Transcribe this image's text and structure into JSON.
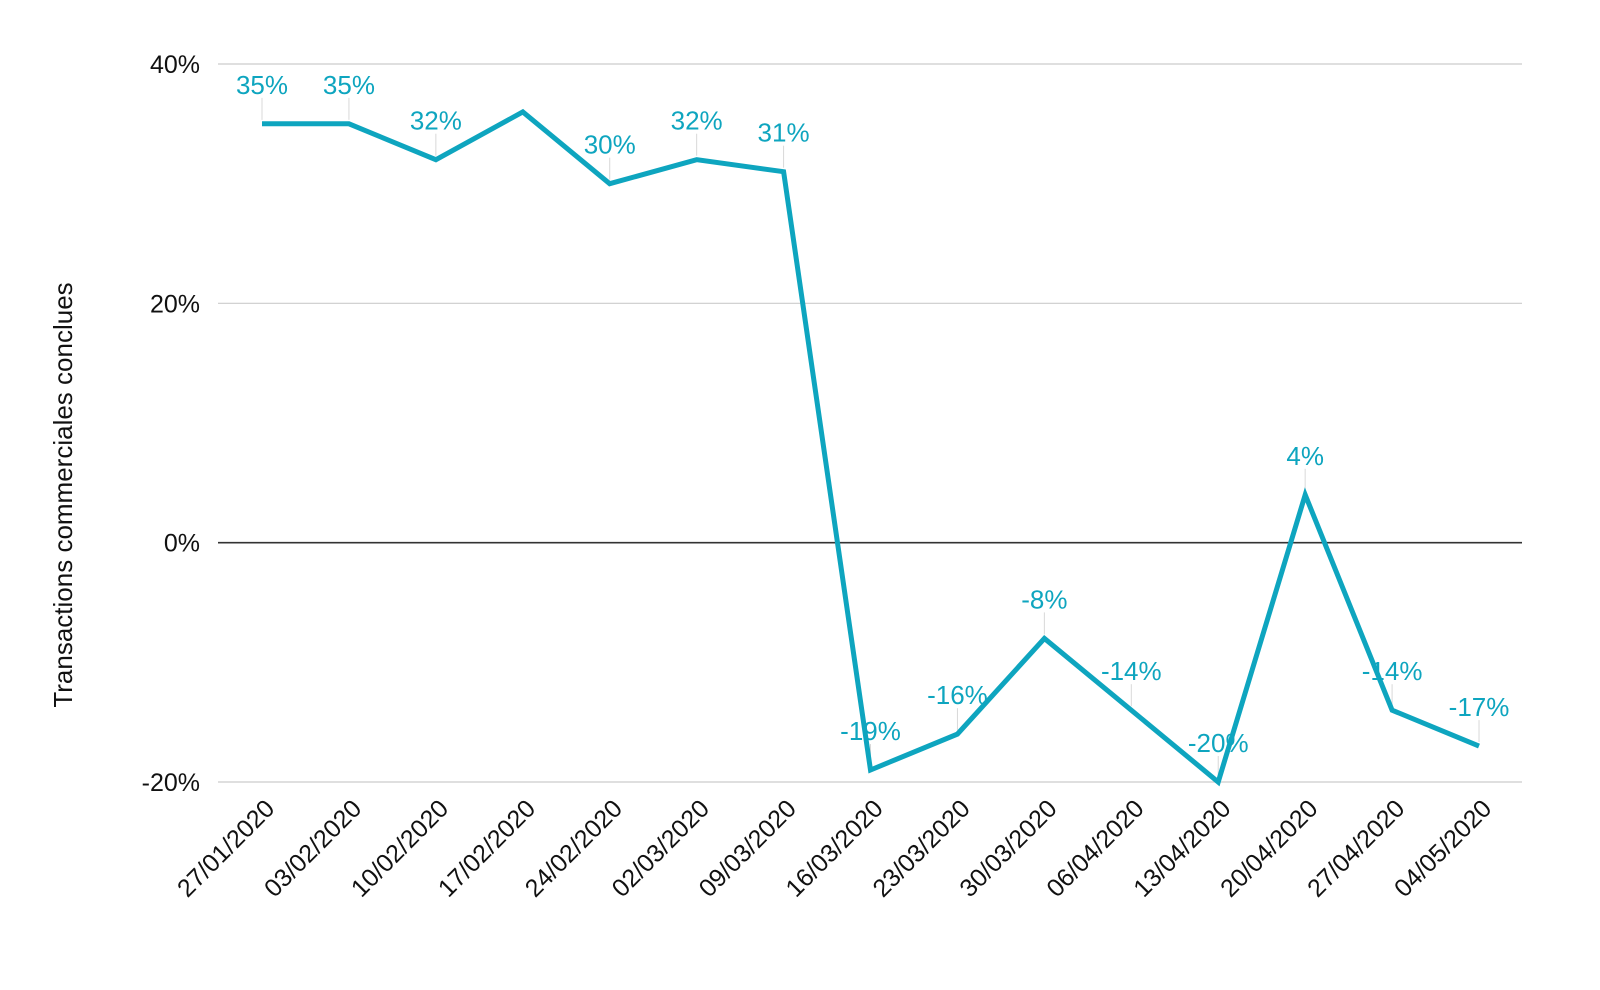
{
  "chart_data": {
    "type": "line",
    "title": "",
    "xlabel": "",
    "ylabel": "Transactions commerciales conclues",
    "categories": [
      "27/01/2020",
      "03/02/2020",
      "10/02/2020",
      "17/02/2020",
      "24/02/2020",
      "02/03/2020",
      "09/03/2020",
      "16/03/2020",
      "23/03/2020",
      "30/03/2020",
      "06/04/2020",
      "13/04/2020",
      "20/04/2020",
      "27/04/2020",
      "04/05/2020"
    ],
    "series": [
      {
        "name": "Transactions commerciales conclues",
        "values": [
          35,
          35,
          32,
          36,
          30,
          32,
          31,
          -19,
          -16,
          -8,
          -14,
          -20,
          4,
          -14,
          -17
        ],
        "labels": [
          "35%",
          "35%",
          "32%",
          "",
          "30%",
          "32%",
          "31%",
          "-19%",
          "-16%",
          "-8%",
          "-14%",
          "-20%",
          "4%",
          "-14%",
          "-17%"
        ]
      }
    ],
    "ylim": [
      -20,
      40
    ],
    "yticks": [
      -20,
      0,
      20,
      40
    ],
    "ytick_labels": [
      "-20%",
      "0%",
      "20%",
      "40%"
    ],
    "grid": true,
    "colors": {
      "line": "#0ea5bf",
      "grid": "#cccccc",
      "zero": "#333333",
      "text": "#111111"
    }
  }
}
